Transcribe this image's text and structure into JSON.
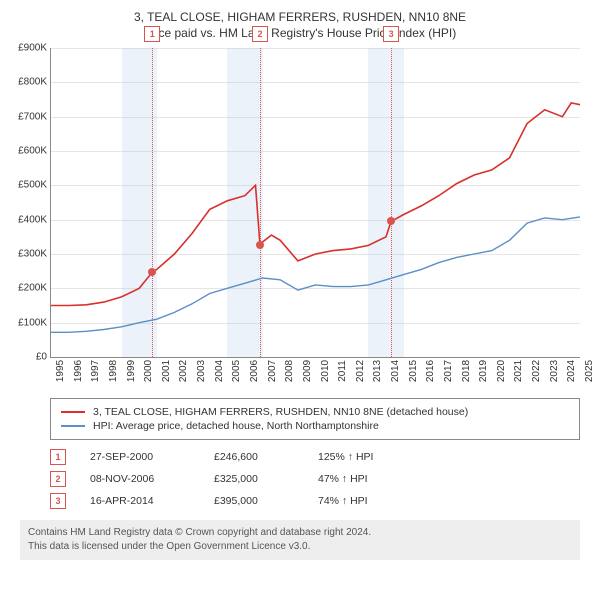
{
  "title": "3, TEAL CLOSE, HIGHAM FERRERS, RUSHDEN, NN10 8NE",
  "subtitle": "Price paid vs. HM Land Registry's House Price Index (HPI)",
  "chart": {
    "type": "line",
    "ylim": [
      0,
      900000
    ],
    "ytick_step": 100000,
    "yticks": [
      "£0",
      "£100K",
      "£200K",
      "£300K",
      "£400K",
      "£500K",
      "£600K",
      "£700K",
      "£800K",
      "£900K"
    ],
    "xlim": [
      1995,
      2025
    ],
    "xticks": [
      1995,
      1996,
      1997,
      1998,
      1999,
      2000,
      2001,
      2002,
      2003,
      2004,
      2005,
      2006,
      2007,
      2008,
      2009,
      2010,
      2011,
      2012,
      2013,
      2014,
      2015,
      2016,
      2017,
      2018,
      2019,
      2020,
      2021,
      2022,
      2023,
      2024,
      2025
    ],
    "background_color": "#ffffff",
    "grid_color": "#e5e5e5",
    "band_color": "rgba(180,205,230,0.25)",
    "bands": [
      {
        "from": 1999,
        "to": 2001
      },
      {
        "from": 2005,
        "to": 2007
      },
      {
        "from": 2013,
        "to": 2015
      }
    ],
    "vlines": [
      2000.74,
      2006.85,
      2014.29
    ],
    "series": [
      {
        "name": "property",
        "label": "3, TEAL CLOSE, HIGHAM FERRERS, RUSHDEN, NN10 8NE (detached house)",
        "color": "#d9302c",
        "width": 1.6,
        "data": [
          [
            1995,
            150000
          ],
          [
            1996,
            150000
          ],
          [
            1997,
            152000
          ],
          [
            1998,
            160000
          ],
          [
            1999,
            175000
          ],
          [
            2000,
            200000
          ],
          [
            2000.74,
            246600
          ],
          [
            2001,
            255000
          ],
          [
            2002,
            300000
          ],
          [
            2003,
            360000
          ],
          [
            2004,
            430000
          ],
          [
            2005,
            455000
          ],
          [
            2006,
            470000
          ],
          [
            2006.6,
            500000
          ],
          [
            2006.85,
            325000
          ],
          [
            2007,
            335000
          ],
          [
            2007.5,
            355000
          ],
          [
            2008,
            340000
          ],
          [
            2009,
            280000
          ],
          [
            2010,
            300000
          ],
          [
            2011,
            310000
          ],
          [
            2012,
            315000
          ],
          [
            2013,
            325000
          ],
          [
            2014,
            350000
          ],
          [
            2014.29,
            395000
          ],
          [
            2015,
            415000
          ],
          [
            2016,
            440000
          ],
          [
            2017,
            470000
          ],
          [
            2018,
            505000
          ],
          [
            2019,
            530000
          ],
          [
            2020,
            545000
          ],
          [
            2021,
            580000
          ],
          [
            2022,
            680000
          ],
          [
            2023,
            720000
          ],
          [
            2024,
            700000
          ],
          [
            2024.5,
            740000
          ],
          [
            2025,
            735000
          ]
        ]
      },
      {
        "name": "hpi",
        "label": "HPI: Average price, detached house, North Northamptonshire",
        "color": "#5b8fc6",
        "width": 1.4,
        "data": [
          [
            1995,
            72000
          ],
          [
            1996,
            72000
          ],
          [
            1997,
            75000
          ],
          [
            1998,
            80000
          ],
          [
            1999,
            88000
          ],
          [
            2000,
            100000
          ],
          [
            2001,
            110000
          ],
          [
            2002,
            130000
          ],
          [
            2003,
            155000
          ],
          [
            2004,
            185000
          ],
          [
            2005,
            200000
          ],
          [
            2006,
            215000
          ],
          [
            2007,
            230000
          ],
          [
            2008,
            225000
          ],
          [
            2009,
            195000
          ],
          [
            2010,
            210000
          ],
          [
            2011,
            205000
          ],
          [
            2012,
            205000
          ],
          [
            2013,
            210000
          ],
          [
            2014,
            225000
          ],
          [
            2015,
            240000
          ],
          [
            2016,
            255000
          ],
          [
            2017,
            275000
          ],
          [
            2018,
            290000
          ],
          [
            2019,
            300000
          ],
          [
            2020,
            310000
          ],
          [
            2021,
            340000
          ],
          [
            2022,
            390000
          ],
          [
            2023,
            405000
          ],
          [
            2024,
            400000
          ],
          [
            2025,
            408000
          ]
        ]
      }
    ],
    "sale_markers": [
      {
        "n": "1",
        "x": 2000.74,
        "y": 246600
      },
      {
        "n": "2",
        "x": 2006.85,
        "y": 325000
      },
      {
        "n": "3",
        "x": 2014.29,
        "y": 395000
      }
    ]
  },
  "legend": {
    "items": [
      {
        "color": "#d9302c",
        "label": "3, TEAL CLOSE, HIGHAM FERRERS, RUSHDEN, NN10 8NE (detached house)"
      },
      {
        "color": "#5b8fc6",
        "label": "HPI: Average price, detached house, North Northamptonshire"
      }
    ]
  },
  "sales": [
    {
      "n": "1",
      "date": "27-SEP-2000",
      "price": "£246,600",
      "pct": "125% ↑ HPI"
    },
    {
      "n": "2",
      "date": "08-NOV-2006",
      "price": "£325,000",
      "pct": "47% ↑ HPI"
    },
    {
      "n": "3",
      "date": "16-APR-2014",
      "price": "£395,000",
      "pct": "74% ↑ HPI"
    }
  ],
  "footer": {
    "line1": "Contains HM Land Registry data © Crown copyright and database right 2024.",
    "line2": "This data is licensed under the Open Government Licence v3.0."
  }
}
